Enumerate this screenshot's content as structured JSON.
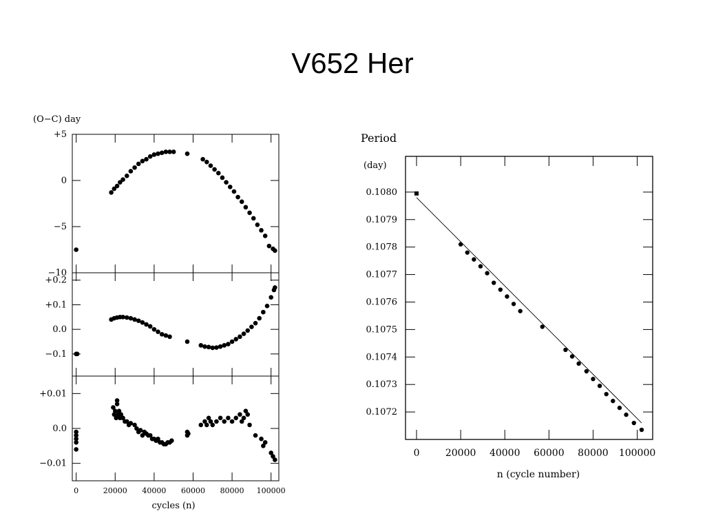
{
  "slide": {
    "title": "V652 Her"
  },
  "chart_data": [
    {
      "type": "scatter",
      "id": "oc-panel",
      "ylabel": "(O−C) day",
      "xlabel": "cycles (n)",
      "xlim": [
        -2000,
        104000
      ],
      "ylim": [
        -10,
        5
      ],
      "xticks": [
        0,
        20000,
        40000,
        60000,
        80000,
        100000
      ],
      "xtick_labels": [
        "0",
        "20000",
        "40000",
        "60000",
        "80000",
        "100000"
      ],
      "yticks": [
        5,
        0,
        -5,
        -10
      ],
      "ytick_labels": [
        "+5",
        "0",
        "−5",
        "−10"
      ],
      "x": [
        0,
        18000,
        19500,
        21000,
        22500,
        24000,
        26000,
        28000,
        30000,
        32000,
        34000,
        36000,
        38000,
        40000,
        42000,
        44000,
        46000,
        48000,
        50000,
        57000,
        65000,
        67000,
        69000,
        71000,
        73000,
        75000,
        77000,
        79000,
        81000,
        83000,
        85000,
        87000,
        89000,
        91000,
        93000,
        95000,
        97000,
        99000,
        101000,
        102000
      ],
      "y": [
        -7.5,
        -1.3,
        -0.9,
        -0.6,
        -0.2,
        0.1,
        0.5,
        1.0,
        1.4,
        1.8,
        2.1,
        2.3,
        2.6,
        2.8,
        2.9,
        3.0,
        3.1,
        3.1,
        3.1,
        2.9,
        2.3,
        2.0,
        1.6,
        1.2,
        0.8,
        0.3,
        -0.2,
        -0.7,
        -1.2,
        -1.8,
        -2.3,
        -2.9,
        -3.5,
        -4.1,
        -4.8,
        -5.4,
        -6.0,
        -7.1,
        -7.4,
        -7.6
      ]
    },
    {
      "type": "scatter",
      "id": "residual-panel",
      "xlim": [
        -2000,
        104000
      ],
      "ylim": [
        -0.19,
        0.23
      ],
      "yticks": [
        0.2,
        0.1,
        0.0,
        -0.1
      ],
      "ytick_labels": [
        "+0.2",
        "+0.1",
        "0.0",
        "−0.1"
      ],
      "x": [
        0,
        500,
        18000,
        19500,
        21000,
        22500,
        24000,
        26000,
        28000,
        30000,
        32000,
        34000,
        36000,
        38000,
        40000,
        42000,
        44000,
        46000,
        48000,
        57000,
        64000,
        66000,
        68000,
        70000,
        72000,
        74000,
        76000,
        78000,
        80000,
        82000,
        84000,
        86000,
        88000,
        90000,
        92000,
        94000,
        96000,
        98000,
        100000,
        101500,
        102000
      ],
      "y": [
        -0.1,
        -0.1,
        0.04,
        0.045,
        0.048,
        0.05,
        0.05,
        0.048,
        0.045,
        0.04,
        0.035,
        0.028,
        0.02,
        0.012,
        0.0,
        -0.01,
        -0.02,
        -0.025,
        -0.03,
        -0.05,
        -0.065,
        -0.07,
        -0.072,
        -0.075,
        -0.074,
        -0.07,
        -0.065,
        -0.06,
        -0.05,
        -0.04,
        -0.03,
        -0.018,
        -0.005,
        0.01,
        0.025,
        0.045,
        0.07,
        0.095,
        0.13,
        0.16,
        0.17
      ]
    },
    {
      "type": "scatter",
      "id": "residual2-panel",
      "xlim": [
        -2000,
        104000
      ],
      "ylim": [
        -0.015,
        0.015
      ],
      "yticks": [
        0.01,
        0.0,
        -0.01
      ],
      "ytick_labels": [
        "+0.01",
        "0.0",
        "−0.01"
      ],
      "x": [
        0,
        0,
        0,
        0,
        0,
        19000,
        19500,
        20000,
        20500,
        21000,
        21000,
        21500,
        22000,
        22500,
        23000,
        24000,
        25000,
        26000,
        27000,
        28000,
        30000,
        31000,
        32000,
        33000,
        34000,
        35000,
        36000,
        37000,
        38000,
        39000,
        40000,
        41000,
        42000,
        43000,
        44000,
        45000,
        46000,
        47000,
        48000,
        49000,
        57000,
        57000,
        57500,
        64000,
        66000,
        67000,
        68000,
        69000,
        70000,
        72000,
        74000,
        76000,
        78000,
        80000,
        82000,
        84000,
        85000,
        86000,
        87000,
        88000,
        89000,
        92000,
        95000,
        96000,
        97000,
        100000,
        101000,
        102000
      ],
      "y": [
        -0.001,
        -0.002,
        -0.003,
        -0.004,
        -0.006,
        0.006,
        0.004,
        0.005,
        0.003,
        0.008,
        0.007,
        0.004,
        0.005,
        0.003,
        0.004,
        0.003,
        0.002,
        0.002,
        0.001,
        0.0015,
        0.001,
        0.0,
        -0.001,
        -0.0005,
        -0.002,
        -0.001,
        -0.0015,
        -0.002,
        -0.002,
        -0.003,
        -0.003,
        -0.0035,
        -0.003,
        -0.004,
        -0.004,
        -0.0045,
        -0.0045,
        -0.004,
        -0.004,
        -0.0035,
        -0.001,
        -0.002,
        -0.0015,
        0.001,
        0.002,
        0.001,
        0.003,
        0.002,
        0.001,
        0.002,
        0.003,
        0.002,
        0.003,
        0.002,
        0.003,
        0.004,
        0.002,
        0.003,
        0.005,
        0.004,
        0.001,
        -0.002,
        -0.003,
        -0.005,
        -0.004,
        -0.007,
        -0.008,
        -0.009
      ]
    },
    {
      "type": "line",
      "id": "period-panel",
      "title": "Period",
      "ylabel": "(day)",
      "xlabel": "n (cycle number)",
      "xlim": [
        -5000,
        107000
      ],
      "ylim": [
        0.1071,
        0.10813
      ],
      "xticks": [
        0,
        20000,
        40000,
        60000,
        80000,
        100000
      ],
      "xtick_labels": [
        "0",
        "20000",
        "40000",
        "60000",
        "80000",
        "100000"
      ],
      "yticks": [
        0.108,
        0.1079,
        0.1078,
        0.1077,
        0.1076,
        0.1075,
        0.1074,
        0.1073,
        0.1072
      ],
      "ytick_labels": [
        "0.1080",
        "0.1079",
        "0.1078",
        "0.1077",
        "0.1076",
        "0.1075",
        "0.1074",
        "0.1073",
        "0.1072"
      ],
      "fit_line": {
        "x": [
          0,
          102000
        ],
        "y": [
          0.10798,
          0.10716
        ]
      },
      "series": [
        {
          "marker": "square",
          "x": [
            0
          ],
          "y": [
            0.107995
          ]
        },
        {
          "marker": "circle",
          "x": [
            20000,
            23000,
            26000,
            29000,
            32000,
            35000,
            38000,
            41000,
            44000,
            47000,
            57000,
            67500,
            70500,
            73500,
            77000,
            80000,
            83000,
            86000,
            89000,
            92000,
            95000,
            98500,
            102000
          ],
          "y": [
            0.10781,
            0.10778,
            0.107755,
            0.10773,
            0.107705,
            0.10767,
            0.107645,
            0.10762,
            0.107593,
            0.107567,
            0.10751,
            0.107426,
            0.107402,
            0.107376,
            0.107348,
            0.10732,
            0.107295,
            0.107265,
            0.10724,
            0.107215,
            0.10719,
            0.10716,
            0.107135
          ]
        }
      ]
    }
  ]
}
